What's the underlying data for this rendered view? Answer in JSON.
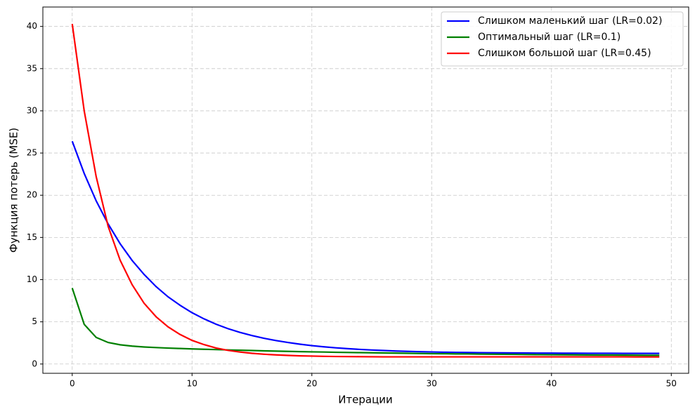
{
  "chart_data": {
    "type": "line",
    "xlabel": "Итерации",
    "ylabel": "Функция потерь (MSE)",
    "x": [
      0,
      1,
      2,
      3,
      4,
      5,
      6,
      7,
      8,
      9,
      10,
      11,
      12,
      13,
      14,
      15,
      16,
      17,
      18,
      19,
      20,
      21,
      22,
      23,
      24,
      25,
      26,
      27,
      28,
      29,
      30,
      31,
      32,
      33,
      34,
      35,
      36,
      37,
      38,
      39,
      40,
      41,
      42,
      43,
      44,
      45,
      46,
      47,
      48,
      49
    ],
    "series": [
      {
        "name": "Слишком маленький шаг (LR=0.02)",
        "color": "#0000ff",
        "values": [
          26.4,
          22.58,
          19.33,
          16.59,
          14.25,
          12.27,
          10.61,
          9.17,
          7.96,
          6.96,
          6.08,
          5.35,
          4.72,
          4.19,
          3.75,
          3.37,
          3.05,
          2.78,
          2.55,
          2.35,
          2.18,
          2.04,
          1.92,
          1.82,
          1.73,
          1.66,
          1.6,
          1.54,
          1.5,
          1.46,
          1.43,
          1.4,
          1.38,
          1.36,
          1.34,
          1.33,
          1.32,
          1.31,
          1.3,
          1.29,
          1.29,
          1.28,
          1.28,
          1.27,
          1.27,
          1.27,
          1.26,
          1.26,
          1.26,
          1.26
        ]
      },
      {
        "name": "Оптимальный шаг (LR=0.1)",
        "color": "#008000",
        "values": [
          9.0,
          4.7,
          3.15,
          2.55,
          2.28,
          2.12,
          2.02,
          1.95,
          1.89,
          1.84,
          1.79,
          1.75,
          1.71,
          1.67,
          1.63,
          1.6,
          1.56,
          1.53,
          1.5,
          1.47,
          1.44,
          1.42,
          1.39,
          1.37,
          1.35,
          1.33,
          1.31,
          1.29,
          1.27,
          1.25,
          1.23,
          1.22,
          1.2,
          1.19,
          1.17,
          1.16,
          1.15,
          1.14,
          1.12,
          1.11,
          1.1,
          1.09,
          1.08,
          1.07,
          1.06,
          1.06,
          1.05,
          1.04,
          1.03,
          1.03
        ]
      },
      {
        "name": "Слишком большой шаг (LR=0.45)",
        "color": "#ff0000",
        "values": [
          40.3,
          30.0,
          22.2,
          16.3,
          12.3,
          9.4,
          7.2,
          5.6,
          4.4,
          3.5,
          2.8,
          2.3,
          1.9,
          1.62,
          1.42,
          1.27,
          1.16,
          1.08,
          1.02,
          0.97,
          0.94,
          0.91,
          0.89,
          0.88,
          0.87,
          0.86,
          0.85,
          0.85,
          0.85,
          0.85,
          0.85,
          0.85,
          0.85,
          0.85,
          0.85,
          0.85,
          0.85,
          0.85,
          0.85,
          0.85,
          0.85,
          0.85,
          0.85,
          0.85,
          0.85,
          0.85,
          0.85,
          0.84,
          0.84,
          0.84
        ]
      }
    ],
    "xlim": [
      -2.45,
      51.45
    ],
    "xticks": [
      0,
      10,
      20,
      30,
      40,
      50
    ],
    "ylim": [
      -1.1,
      42.3
    ],
    "yticks": [
      0,
      5,
      10,
      15,
      20,
      25,
      30,
      35,
      40
    ],
    "grid": true,
    "legend": "upper right"
  }
}
